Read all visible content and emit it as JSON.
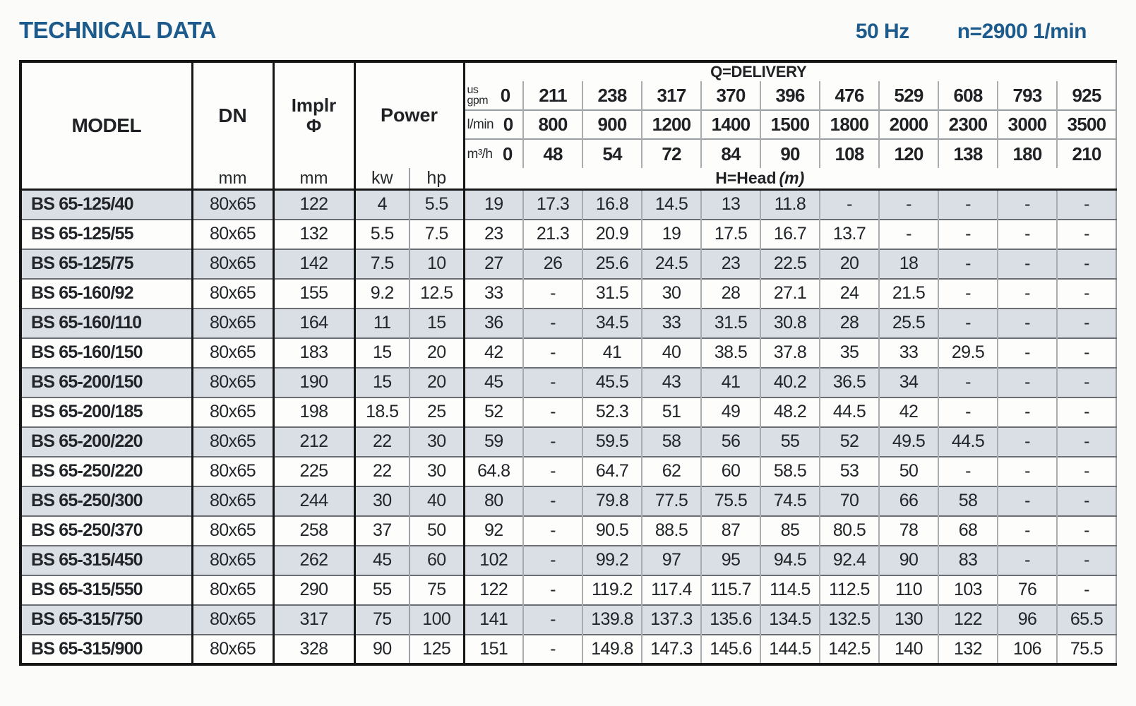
{
  "header": {
    "title": "TECHNICAL DATA",
    "frequency": "50 Hz",
    "speed": "n=2900 1/min"
  },
  "colors": {
    "accent_blue": "#1d5b8c",
    "row_shade": "#dadfe5"
  },
  "table": {
    "labels": {
      "model": "MODEL",
      "dn": "DN",
      "dn_unit": "mm",
      "implr_line1": "Implr",
      "implr_line2": "Φ",
      "implr_unit": "mm",
      "power": "Power",
      "kw": "kw",
      "hp": "hp",
      "q_delivery": "Q=DELIVERY",
      "h_head": "H=Head",
      "h_head_unit": "(m)"
    },
    "unit_labels": {
      "us_gpm": [
        "us",
        "gpm"
      ],
      "l_min": [
        "l/min"
      ],
      "m3_h": [
        "m³/h"
      ]
    },
    "delivery": {
      "us_gpm": [
        "0",
        "211",
        "238",
        "317",
        "370",
        "396",
        "476",
        "529",
        "608",
        "793",
        "925"
      ],
      "l_min": [
        "0",
        "800",
        "900",
        "1200",
        "1400",
        "1500",
        "1800",
        "2000",
        "2300",
        "3000",
        "3500"
      ],
      "m3_h": [
        "0",
        "48",
        "54",
        "72",
        "84",
        "90",
        "108",
        "120",
        "138",
        "180",
        "210"
      ]
    },
    "rows": [
      {
        "model": "BS 65-125/40",
        "dn": "80x65",
        "impeller": "122",
        "kw": "4",
        "hp": "5.5",
        "head": [
          "19",
          "17.3",
          "16.8",
          "14.5",
          "13",
          "11.8",
          "-",
          "-",
          "-",
          "-",
          "-"
        ]
      },
      {
        "model": "BS 65-125/55",
        "dn": "80x65",
        "impeller": "132",
        "kw": "5.5",
        "hp": "7.5",
        "head": [
          "23",
          "21.3",
          "20.9",
          "19",
          "17.5",
          "16.7",
          "13.7",
          "-",
          "-",
          "-",
          "-"
        ]
      },
      {
        "model": "BS 65-125/75",
        "dn": "80x65",
        "impeller": "142",
        "kw": "7.5",
        "hp": "10",
        "head": [
          "27",
          "26",
          "25.6",
          "24.5",
          "23",
          "22.5",
          "20",
          "18",
          "-",
          "-",
          "-"
        ]
      },
      {
        "model": "BS 65-160/92",
        "dn": "80x65",
        "impeller": "155",
        "kw": "9.2",
        "hp": "12.5",
        "head": [
          "33",
          "-",
          "31.5",
          "30",
          "28",
          "27.1",
          "24",
          "21.5",
          "-",
          "-",
          "-"
        ]
      },
      {
        "model": "BS 65-160/110",
        "dn": "80x65",
        "impeller": "164",
        "kw": "11",
        "hp": "15",
        "head": [
          "36",
          "-",
          "34.5",
          "33",
          "31.5",
          "30.8",
          "28",
          "25.5",
          "-",
          "-",
          "-"
        ]
      },
      {
        "model": "BS 65-160/150",
        "dn": "80x65",
        "impeller": "183",
        "kw": "15",
        "hp": "20",
        "head": [
          "42",
          "-",
          "41",
          "40",
          "38.5",
          "37.8",
          "35",
          "33",
          "29.5",
          "-",
          "-"
        ]
      },
      {
        "model": "BS 65-200/150",
        "dn": "80x65",
        "impeller": "190",
        "kw": "15",
        "hp": "20",
        "head": [
          "45",
          "-",
          "45.5",
          "43",
          "41",
          "40.2",
          "36.5",
          "34",
          "-",
          "-",
          "-"
        ]
      },
      {
        "model": "BS 65-200/185",
        "dn": "80x65",
        "impeller": "198",
        "kw": "18.5",
        "hp": "25",
        "head": [
          "52",
          "-",
          "52.3",
          "51",
          "49",
          "48.2",
          "44.5",
          "42",
          "-",
          "-",
          "-"
        ]
      },
      {
        "model": "BS 65-200/220",
        "dn": "80x65",
        "impeller": "212",
        "kw": "22",
        "hp": "30",
        "head": [
          "59",
          "-",
          "59.5",
          "58",
          "56",
          "55",
          "52",
          "49.5",
          "44.5",
          "-",
          "-"
        ]
      },
      {
        "model": "BS 65-250/220",
        "dn": "80x65",
        "impeller": "225",
        "kw": "22",
        "hp": "30",
        "head": [
          "64.8",
          "-",
          "64.7",
          "62",
          "60",
          "58.5",
          "53",
          "50",
          "-",
          "-",
          "-"
        ]
      },
      {
        "model": "BS 65-250/300",
        "dn": "80x65",
        "impeller": "244",
        "kw": "30",
        "hp": "40",
        "head": [
          "80",
          "-",
          "79.8",
          "77.5",
          "75.5",
          "74.5",
          "70",
          "66",
          "58",
          "-",
          "-"
        ]
      },
      {
        "model": "BS 65-250/370",
        "dn": "80x65",
        "impeller": "258",
        "kw": "37",
        "hp": "50",
        "head": [
          "92",
          "-",
          "90.5",
          "88.5",
          "87",
          "85",
          "80.5",
          "78",
          "68",
          "-",
          "-"
        ]
      },
      {
        "model": "BS 65-315/450",
        "dn": "80x65",
        "impeller": "262",
        "kw": "45",
        "hp": "60",
        "head": [
          "102",
          "-",
          "99.2",
          "97",
          "95",
          "94.5",
          "92.4",
          "90",
          "83",
          "-",
          "-"
        ]
      },
      {
        "model": "BS 65-315/550",
        "dn": "80x65",
        "impeller": "290",
        "kw": "55",
        "hp": "75",
        "head": [
          "122",
          "-",
          "119.2",
          "117.4",
          "115.7",
          "114.5",
          "112.5",
          "110",
          "103",
          "76",
          "-"
        ]
      },
      {
        "model": "BS 65-315/750",
        "dn": "80x65",
        "impeller": "317",
        "kw": "75",
        "hp": "100",
        "head": [
          "141",
          "-",
          "139.8",
          "137.3",
          "135.6",
          "134.5",
          "132.5",
          "130",
          "122",
          "96",
          "65.5"
        ]
      },
      {
        "model": "BS 65-315/900",
        "dn": "80x65",
        "impeller": "328",
        "kw": "90",
        "hp": "125",
        "head": [
          "151",
          "-",
          "149.8",
          "147.3",
          "145.6",
          "144.5",
          "142.5",
          "140",
          "132",
          "106",
          "75.5"
        ]
      }
    ]
  }
}
